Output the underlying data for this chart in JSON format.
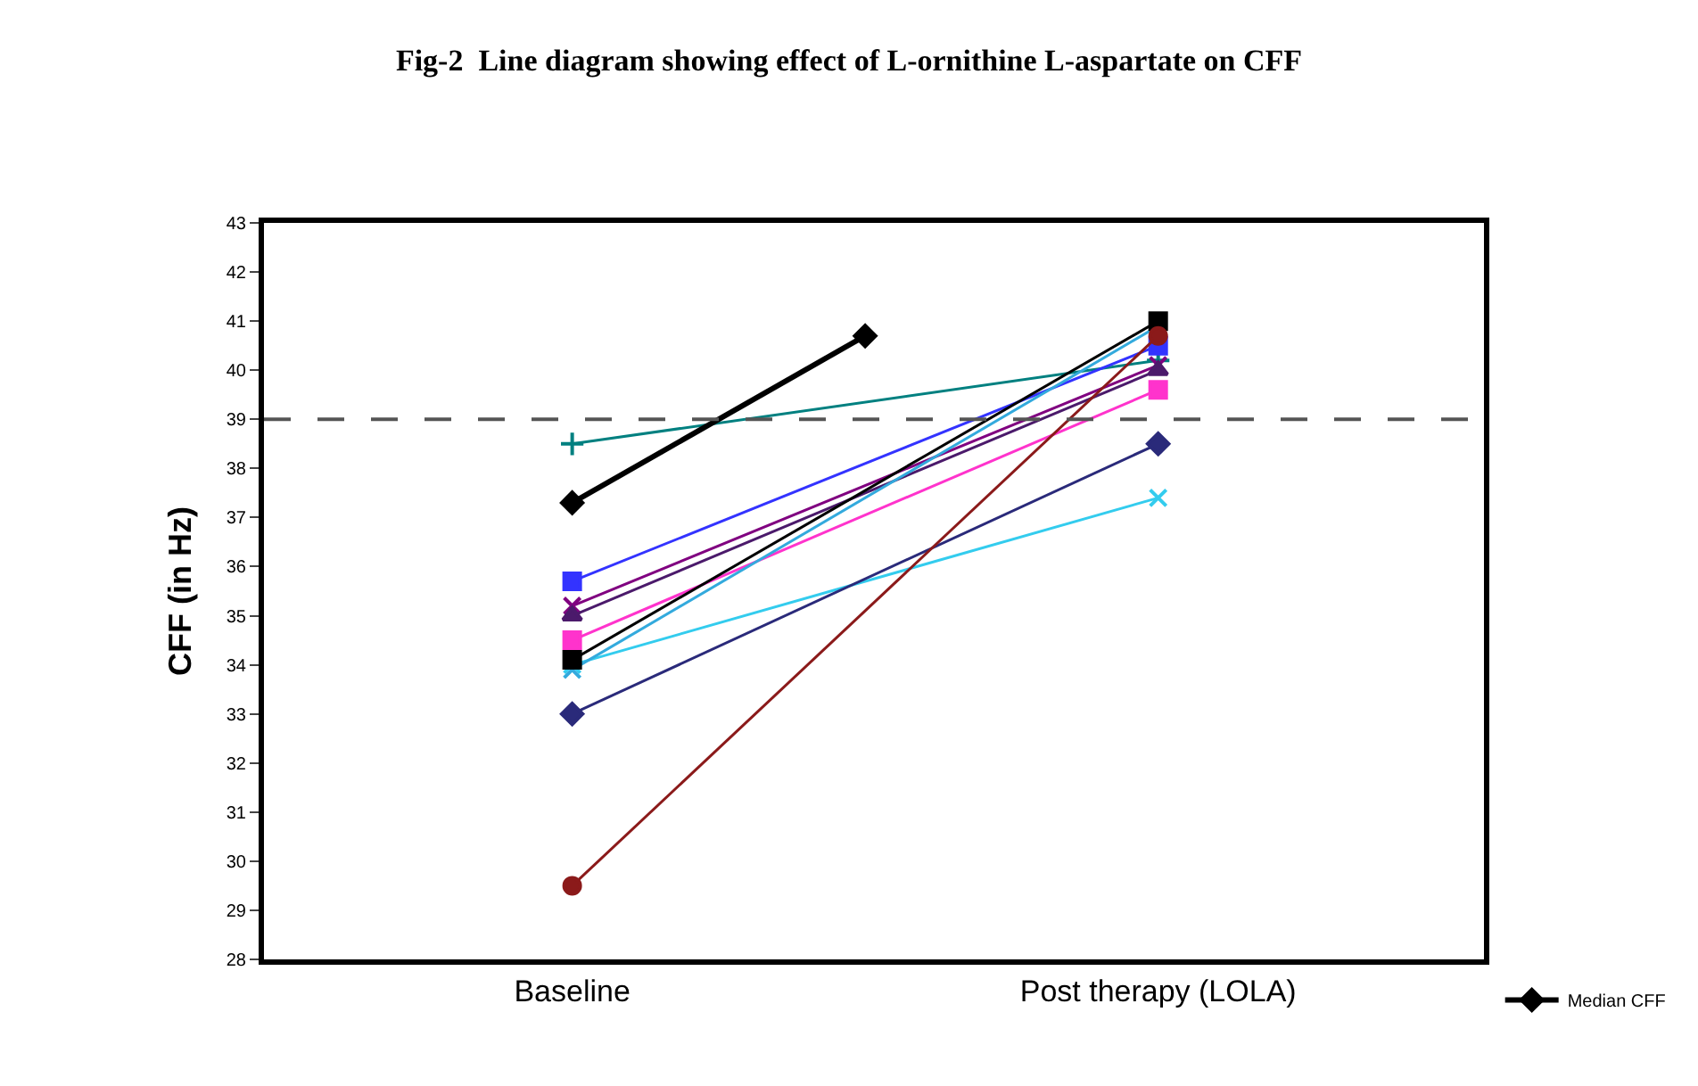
{
  "chart_data": {
    "type": "line",
    "title": "Fig-2  Line diagram showing effect of L-ornithine L-aspartate on CFF",
    "ylabel": "CFF (in Hz)",
    "categories": [
      "Baseline",
      null,
      "Post therapy (LOLA)"
    ],
    "ylim": [
      28,
      43
    ],
    "yticks": [
      28,
      29,
      30,
      31,
      32,
      33,
      34,
      35,
      36,
      37,
      38,
      39,
      40,
      41,
      42,
      43
    ],
    "grid": false,
    "legend": "bottom right",
    "line_style": "solid",
    "ref_lines": [
      {
        "axis": "y",
        "value": 39,
        "color": "#555555",
        "line_style": "dashed"
      }
    ],
    "series": [
      {
        "color": "#008080",
        "values": [
          38.5,
          null,
          40.2
        ],
        "marker": "cross"
      },
      {
        "color": "#3333ff",
        "values": [
          35.7,
          null,
          40.5
        ],
        "marker": "square"
      },
      {
        "color": "#800080",
        "values": [
          35.2,
          null,
          40.1
        ],
        "marker": "x"
      },
      {
        "color": "#4b1a6b",
        "values": [
          35.0,
          null,
          40.0
        ],
        "marker": "triangle"
      },
      {
        "color": "#ff33cc",
        "values": [
          34.5,
          null,
          39.6
        ],
        "marker": "square"
      },
      {
        "color": "#33ccee",
        "values": [
          34.0,
          null,
          37.4
        ],
        "marker": "x"
      },
      {
        "color": "#33aadd",
        "values": [
          33.9,
          null,
          40.9
        ],
        "marker": "x"
      },
      {
        "color": "#000000",
        "values": [
          34.1,
          null,
          41.0
        ],
        "marker": "square"
      },
      {
        "color": "#2a2a7a",
        "values": [
          33.0,
          null,
          38.5
        ],
        "marker": "diamond"
      },
      {
        "color": "#8b1a1a",
        "values": [
          29.5,
          null,
          40.7
        ],
        "marker": "circle"
      },
      {
        "name": "Median CFF",
        "color": "#000000",
        "values": [
          37.3,
          40.7,
          null
        ],
        "marker": "diamond"
      }
    ]
  }
}
